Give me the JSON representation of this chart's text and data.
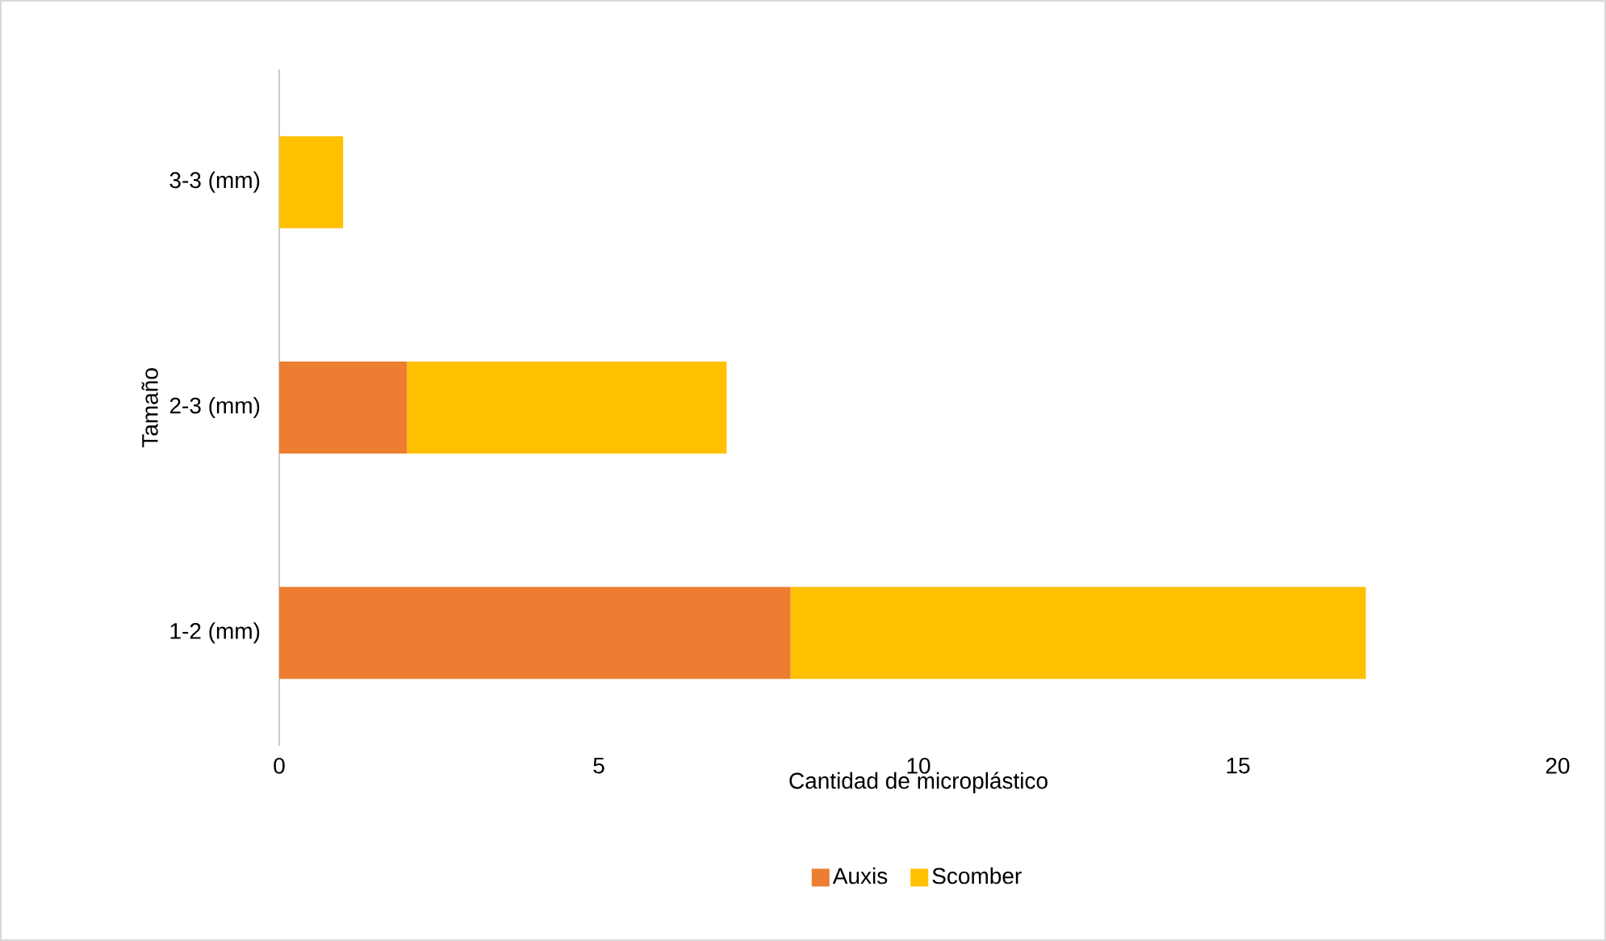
{
  "chart_data": {
    "type": "bar",
    "orientation": "horizontal",
    "stacked": true,
    "xlabel": "Cantidad de microplástico",
    "ylabel": "Tamaño",
    "categories": [
      "3-3 (mm)",
      "2-3 (mm)",
      "1-2 (mm)"
    ],
    "series": [
      {
        "name": "Auxis",
        "color": "#ed7d31",
        "values": [
          0,
          2,
          8
        ]
      },
      {
        "name": "Scomber",
        "color": "#ffc000",
        "values": [
          1,
          5,
          9
        ]
      }
    ],
    "xlim": [
      0,
      20
    ],
    "xticks": [
      0,
      5,
      10,
      15,
      20
    ],
    "legend": "bottom"
  }
}
